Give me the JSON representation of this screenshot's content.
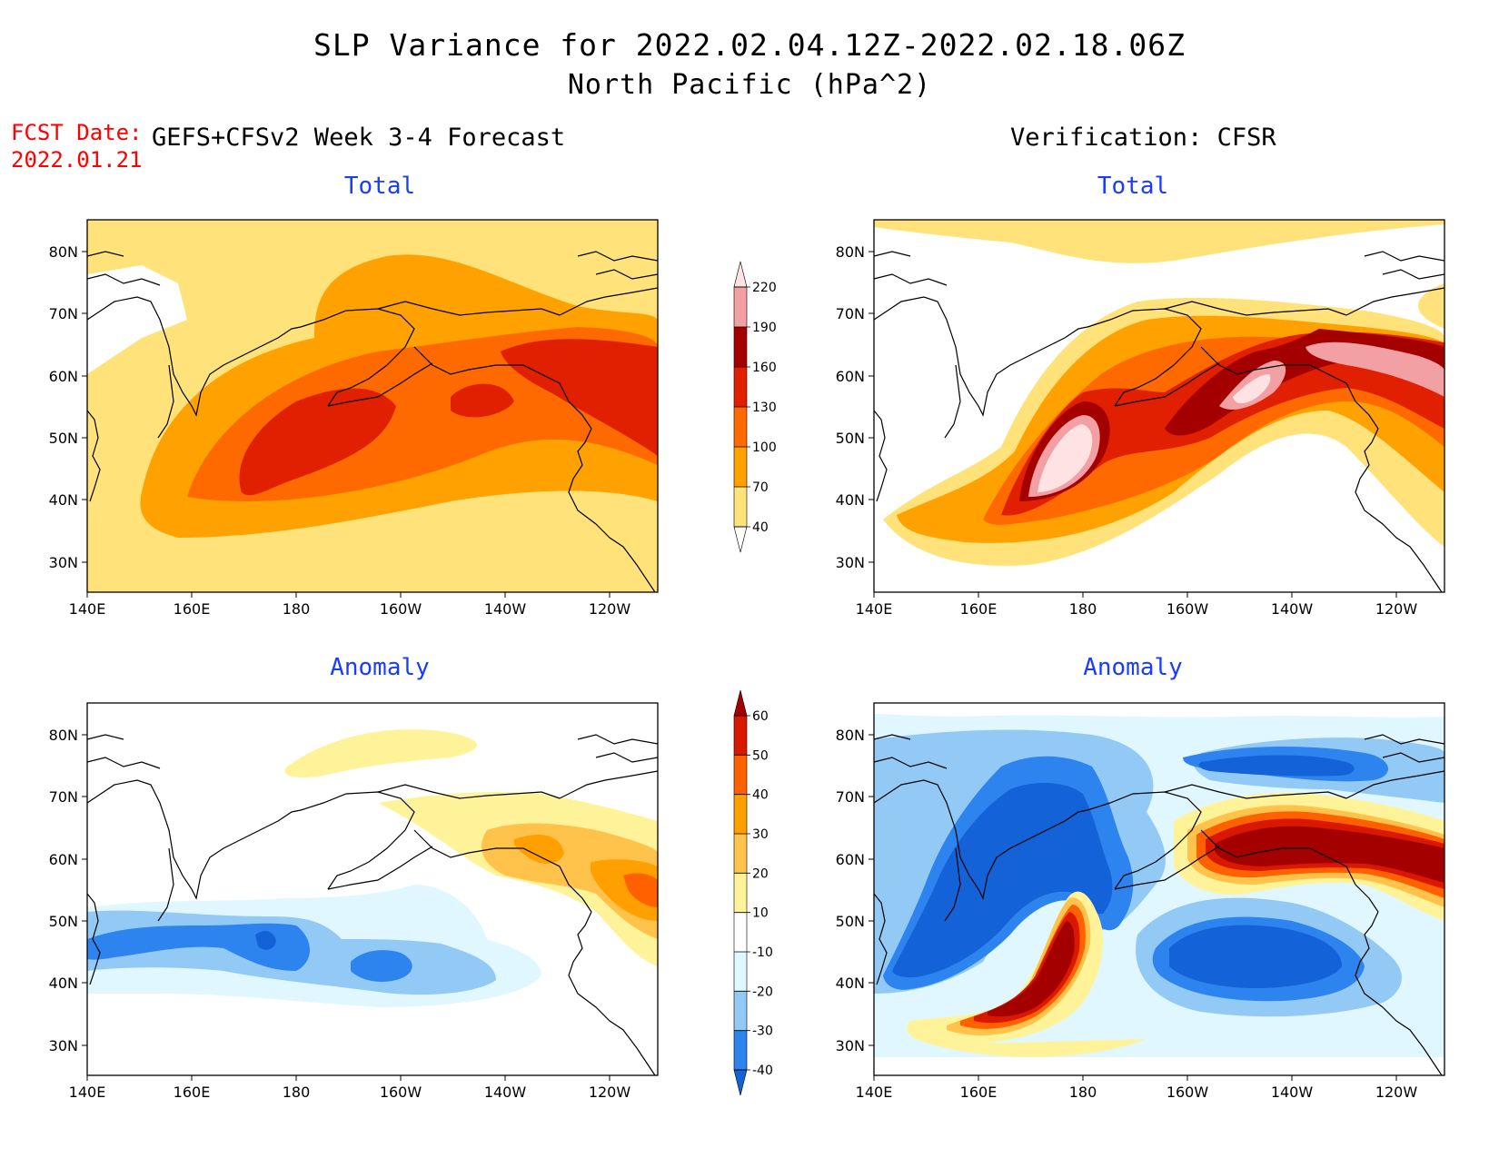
{
  "header": {
    "title_line1": "SLP Variance for 2022.02.04.12Z-2022.02.18.06Z",
    "title_line2": "North Pacific (hPa^2)",
    "fcst_label": "FCST Date:",
    "fcst_date": "2022.01.21",
    "forecast_heading": "GEFS+CFSv2 Week 3-4 Forecast",
    "verification_heading": "Verification: CFSR"
  },
  "panels": [
    {
      "id": "forecast-total",
      "title": "Total"
    },
    {
      "id": "verification-total",
      "title": "Total"
    },
    {
      "id": "forecast-anomaly",
      "title": "Anomaly"
    },
    {
      "id": "verification-anomaly",
      "title": "Anomaly"
    }
  ],
  "axes": {
    "lon_ticks": [
      "140E",
      "160E",
      "180",
      "160W",
      "140W",
      "120W"
    ],
    "lat_ticks": [
      "80N",
      "70N",
      "60N",
      "50N",
      "40N",
      "30N"
    ]
  },
  "colorbar_total": {
    "levels": [
      "40",
      "70",
      "100",
      "130",
      "160",
      "190",
      "220"
    ],
    "colors": [
      "#ffe37a",
      "#ffa100",
      "#ff6a00",
      "#e02000",
      "#a50000",
      "#f2a0a4",
      "#ffe3e3"
    ]
  },
  "colorbar_anomaly": {
    "levels": [
      "-40",
      "-30",
      "-20",
      "-10",
      "10",
      "20",
      "30",
      "40",
      "50",
      "60"
    ],
    "colors": [
      "#1462d8",
      "#2e84ee",
      "#93c9f5",
      "#e0f7ff",
      "#ffffff",
      "#fff39a",
      "#ffc24a",
      "#ffa000",
      "#ff6000",
      "#d81800",
      "#a50000"
    ]
  }
}
